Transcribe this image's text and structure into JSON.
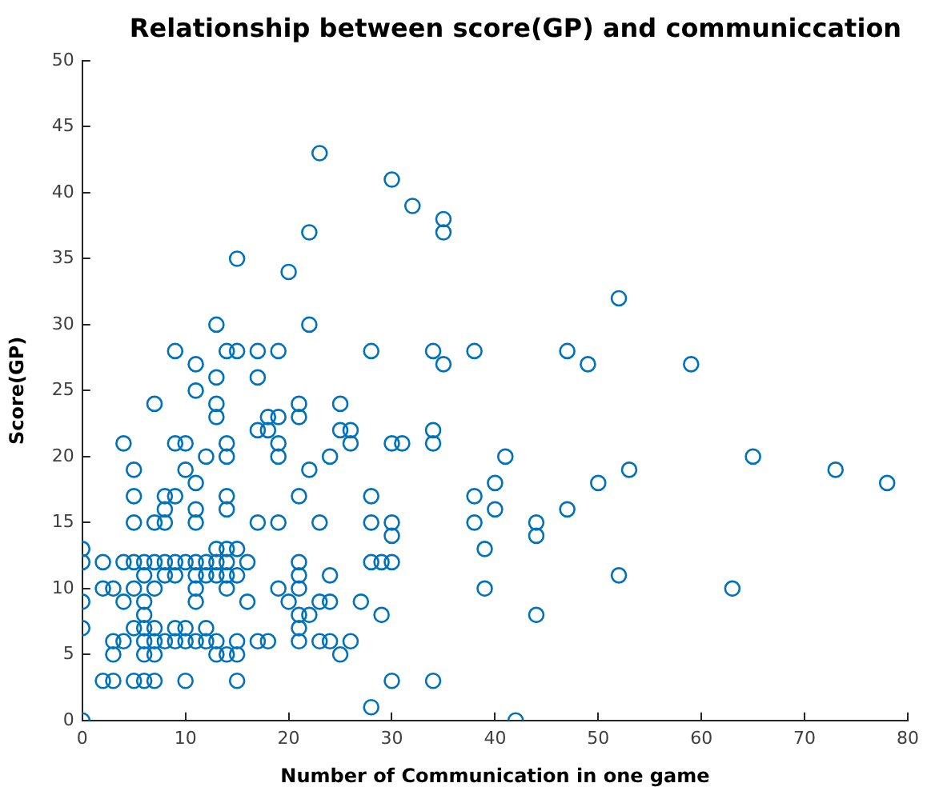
{
  "chart_data": {
    "type": "scatter",
    "title": "Relationship between score(GP) and communiccation",
    "xlabel": "Number of Communication in one game",
    "ylabel": "Score(GP)",
    "marker": "circle",
    "grid": false,
    "legend": false,
    "xlim": [
      0,
      80
    ],
    "xticks": [
      0,
      10,
      20,
      30,
      40,
      50,
      60,
      70,
      80
    ],
    "ylim": [
      0,
      50
    ],
    "yticks": [
      0,
      5,
      10,
      15,
      20,
      25,
      30,
      35,
      40,
      45,
      50
    ],
    "series": [
      {
        "color": "#0072bd",
        "x": [
          0,
          0,
          0,
          0,
          0,
          2,
          2,
          2,
          3,
          3,
          3,
          3,
          4,
          4,
          4,
          4,
          5,
          5,
          5,
          5,
          5,
          5,
          5,
          6,
          6,
          6,
          6,
          6,
          6,
          6,
          6,
          7,
          7,
          7,
          7,
          7,
          7,
          7,
          7,
          8,
          8,
          8,
          8,
          8,
          8,
          9,
          9,
          9,
          9,
          9,
          9,
          9,
          10,
          10,
          10,
          10,
          10,
          10,
          11,
          11,
          11,
          11,
          11,
          11,
          11,
          11,
          11,
          11,
          12,
          12,
          12,
          12,
          12,
          13,
          13,
          13,
          13,
          13,
          13,
          13,
          13,
          13,
          14,
          14,
          14,
          14,
          14,
          14,
          14,
          14,
          14,
          14,
          15,
          15,
          15,
          15,
          15,
          15,
          15,
          16,
          16,
          17,
          17,
          17,
          17,
          17,
          18,
          18,
          18,
          19,
          19,
          19,
          19,
          19,
          19,
          20,
          20,
          21,
          21,
          21,
          21,
          21,
          21,
          21,
          21,
          21,
          22,
          22,
          22,
          22,
          23,
          23,
          23,
          23,
          24,
          24,
          24,
          24,
          25,
          25,
          25,
          26,
          26,
          26,
          27,
          28,
          28,
          28,
          28,
          28,
          29,
          29,
          30,
          30,
          30,
          30,
          30,
          30,
          31,
          32,
          34,
          34,
          34,
          34,
          35,
          35,
          35,
          38,
          38,
          38,
          39,
          39,
          40,
          40,
          41,
          42,
          44,
          44,
          44,
          47,
          47,
          49,
          50,
          52,
          52,
          53,
          59,
          63,
          65,
          73,
          78
        ],
        "values": [
          0,
          7,
          9,
          12,
          13,
          3,
          10,
          12,
          3,
          5,
          6,
          10,
          9,
          12,
          21,
          6,
          3,
          7,
          10,
          12,
          15,
          17,
          19,
          3,
          5,
          6,
          7,
          8,
          9,
          11,
          12,
          3,
          5,
          6,
          7,
          10,
          12,
          15,
          24,
          6,
          11,
          12,
          15,
          16,
          17,
          6,
          7,
          11,
          12,
          17,
          21,
          28,
          3,
          6,
          7,
          12,
          19,
          21,
          6,
          9,
          10,
          11,
          12,
          15,
          16,
          18,
          25,
          27,
          6,
          7,
          11,
          12,
          20,
          5,
          6,
          11,
          12,
          13,
          23,
          24,
          26,
          30,
          5,
          10,
          11,
          12,
          13,
          16,
          17,
          20,
          21,
          28,
          3,
          5,
          6,
          11,
          13,
          28,
          35,
          9,
          12,
          6,
          15,
          22,
          26,
          28,
          6,
          22,
          23,
          10,
          15,
          20,
          21,
          23,
          28,
          9,
          34,
          6,
          7,
          8,
          10,
          11,
          12,
          17,
          23,
          24,
          8,
          19,
          30,
          37,
          6,
          9,
          15,
          43,
          6,
          9,
          11,
          20,
          5,
          22,
          24,
          6,
          21,
          22,
          9,
          1,
          12,
          15,
          17,
          28,
          8,
          12,
          3,
          12,
          14,
          15,
          21,
          41,
          21,
          39,
          3,
          21,
          22,
          28,
          27,
          37,
          38,
          15,
          17,
          28,
          10,
          13,
          16,
          18,
          20,
          0,
          8,
          14,
          15,
          16,
          28,
          27,
          18,
          11,
          32,
          19,
          27,
          10,
          20,
          19,
          18
        ]
      }
    ]
  }
}
